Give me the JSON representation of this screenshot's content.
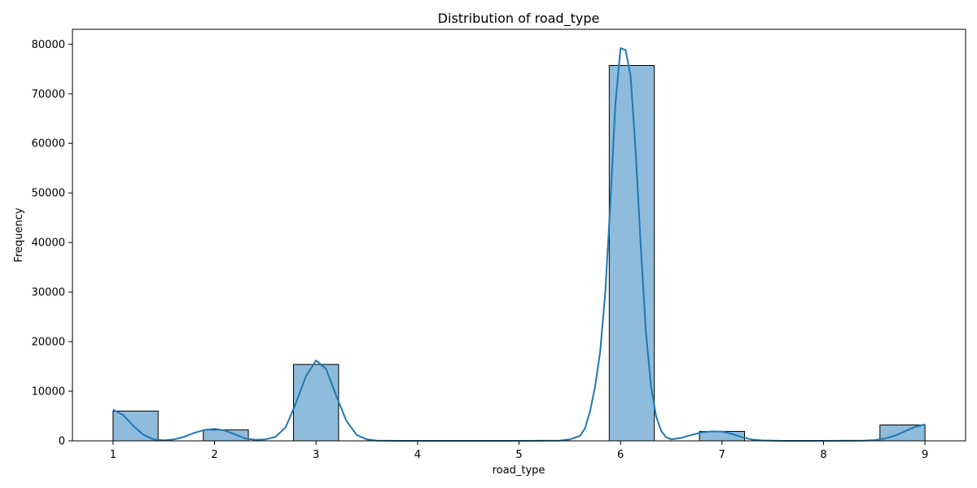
{
  "chart_data": {
    "type": "bar",
    "title": "Distribution of road_type",
    "xlabel": "road_type",
    "ylabel": "Frequency",
    "xlim": [
      0.6,
      9.4
    ],
    "ylim": [
      0,
      83000
    ],
    "xticks": [
      1,
      2,
      3,
      4,
      5,
      6,
      7,
      8,
      9
    ],
    "yticks": [
      0,
      10000,
      20000,
      30000,
      40000,
      50000,
      60000,
      70000,
      80000
    ],
    "grid": false,
    "bins": [
      {
        "x0": 1.0,
        "x1": 1.444,
        "value": 6000
      },
      {
        "x0": 1.889,
        "x1": 2.333,
        "value": 2200
      },
      {
        "x0": 2.778,
        "x1": 3.222,
        "value": 15400
      },
      {
        "x0": 5.889,
        "x1": 6.333,
        "value": 75700
      },
      {
        "x0": 6.778,
        "x1": 7.222,
        "value": 1900
      },
      {
        "x0": 8.556,
        "x1": 9.0,
        "value": 3200
      }
    ],
    "kde": {
      "x": [
        1.0,
        1.1,
        1.2,
        1.3,
        1.4,
        1.5,
        1.6,
        1.7,
        1.8,
        1.9,
        2.0,
        2.1,
        2.2,
        2.3,
        2.4,
        2.5,
        2.6,
        2.7,
        2.8,
        2.9,
        3.0,
        3.1,
        3.2,
        3.3,
        3.4,
        3.5,
        3.6,
        3.8,
        4.2,
        5.0,
        5.4,
        5.5,
        5.6,
        5.65,
        5.7,
        5.75,
        5.8,
        5.85,
        5.9,
        5.95,
        6.0,
        6.05,
        6.1,
        6.15,
        6.2,
        6.25,
        6.3,
        6.35,
        6.4,
        6.45,
        6.5,
        6.6,
        6.7,
        6.8,
        6.9,
        7.0,
        7.1,
        7.2,
        7.3,
        7.4,
        7.6,
        8.0,
        8.4,
        8.5,
        8.6,
        8.7,
        8.8,
        8.9,
        9.0
      ],
      "y": [
        6300,
        5200,
        3000,
        1200,
        300,
        100,
        300,
        800,
        1600,
        2200,
        2400,
        2100,
        1300,
        500,
        200,
        300,
        800,
        2700,
        7500,
        13000,
        16200,
        14500,
        9000,
        4000,
        1200,
        300,
        50,
        0,
        0,
        0,
        50,
        300,
        1000,
        2500,
        6000,
        11000,
        18000,
        30000,
        48000,
        68000,
        79200,
        78800,
        73500,
        58000,
        39000,
        22000,
        11000,
        5000,
        2000,
        700,
        300,
        600,
        1200,
        1700,
        1900,
        1850,
        1400,
        700,
        250,
        80,
        0,
        0,
        50,
        150,
        450,
        1000,
        1900,
        2800,
        3300
      ]
    },
    "colors": {
      "bar_fill": "#8fbcdc",
      "bar_edge": "#000000",
      "kde_line": "#1f77b4"
    }
  }
}
